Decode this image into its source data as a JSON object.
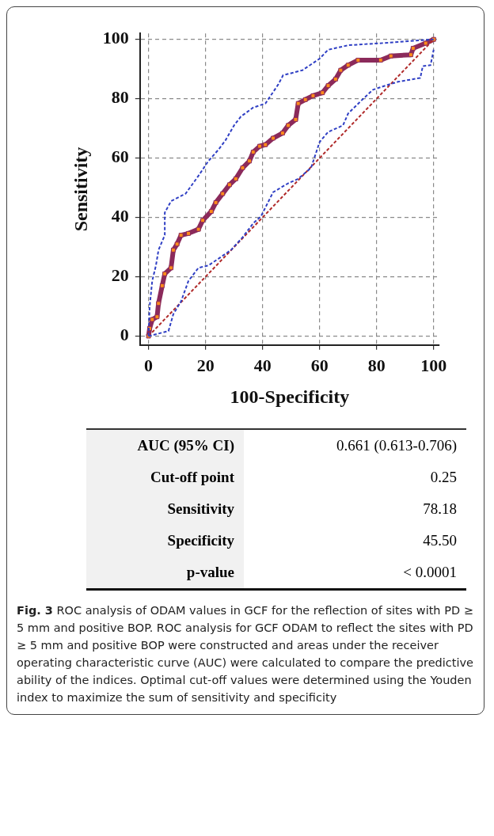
{
  "chart_data": {
    "type": "line",
    "xlabel": "100-Specificity",
    "ylabel": "Sensitivity",
    "xlim": [
      -3,
      102
    ],
    "ylim": [
      -3,
      102
    ],
    "xticks": [
      0,
      20,
      40,
      60,
      80,
      100
    ],
    "yticks": [
      0,
      20,
      40,
      60,
      80,
      100
    ],
    "grid": true,
    "legend": false,
    "series": [
      {
        "color": "#2f3fc4",
        "line_style": "dashed",
        "marker": "none",
        "x": [
          0,
          0.4,
          1.3,
          2.6,
          3.5,
          5.7,
          5.7,
          7.9,
          13,
          17.5,
          21,
          24.5,
          27,
          30,
          32.4,
          36.7,
          41,
          45.5,
          47.2,
          54,
          60,
          63,
          70,
          83,
          100
        ],
        "values": [
          0,
          10,
          18.6,
          23.8,
          29,
          34,
          41.6,
          45.5,
          48,
          54,
          59,
          62.8,
          66,
          71,
          74,
          77,
          78.4,
          84.8,
          87.9,
          89.6,
          93.5,
          96.5,
          98,
          98.8,
          100
        ]
      },
      {
        "color": "#2f3fc4",
        "line_style": "dashed",
        "marker": "none",
        "x": [
          0,
          7,
          8.7,
          11.4,
          14,
          17.5,
          21,
          25,
          28.9,
          33,
          36.7,
          39.4,
          43.7,
          49,
          52.5,
          57,
          60,
          63,
          68.2,
          70,
          75.3,
          78.7,
          83,
          87.5,
          95.3,
          96.2,
          98.9,
          100
        ],
        "values": [
          0,
          1.7,
          7.4,
          11.7,
          18.6,
          23,
          23.8,
          26.4,
          29,
          33.3,
          38,
          40.3,
          48.5,
          51.5,
          53,
          56.7,
          65.4,
          68.8,
          71,
          75,
          80,
          83,
          84.4,
          85.7,
          87,
          91,
          91.3,
          96.5
        ]
      },
      {
        "color": "#b02a2a",
        "line_style": "dashed",
        "marker": "none",
        "x": [
          0,
          100
        ],
        "values": [
          0,
          100
        ]
      },
      {
        "color": "#8b2a5b",
        "line_style": "solid",
        "marker": "square",
        "x": [
          0,
          0.4,
          1.3,
          3,
          3.5,
          4.8,
          5.7,
          7.9,
          8.7,
          10,
          11.4,
          14,
          17.5,
          19,
          22,
          23.6,
          26,
          28.4,
          30.6,
          33,
          35.4,
          36.7,
          39,
          41,
          43.7,
          47,
          49,
          51.6,
          52.5,
          55,
          57.7,
          61,
          63,
          65.6,
          67.4,
          70,
          73.5,
          81.4,
          85,
          92,
          92.8,
          97.2,
          100
        ],
        "values": [
          0,
          2.6,
          5.6,
          6.5,
          11,
          17,
          21,
          23,
          29,
          31,
          34,
          34.6,
          36,
          39,
          42,
          45,
          48,
          51,
          53,
          56.7,
          59,
          62,
          64,
          64.5,
          66.7,
          68.4,
          71,
          73,
          78.4,
          79.7,
          81,
          82,
          84.4,
          86.6,
          89.6,
          91.3,
          93,
          93,
          94.4,
          94.8,
          97,
          98.7,
          100
        ]
      }
    ],
    "annotations": [
      "AUC (95% CI)",
      "0.661 (0.613-0.706)",
      "Cut-off point",
      "0.25",
      "Sensitivity",
      "78.18",
      "Specificity",
      "45.50",
      "p-value",
      "< 0.0001",
      "Fig. 3",
      "ROC analysis of ODAM values in GCF for the reflection of sites with PD ≥ 5 mm and positive BOP. ROC analysis for GCF ODAM to reflect the sites with PD ≥ 5 mm and positive BOP were constructed and areas under the receiver operating characteristic curve (AUC) were calculated to compare the predictive ability of the indices. Optimal cut-off values were determined using the Youden index to maximize the sum of sensitivity and specificity"
    ]
  }
}
